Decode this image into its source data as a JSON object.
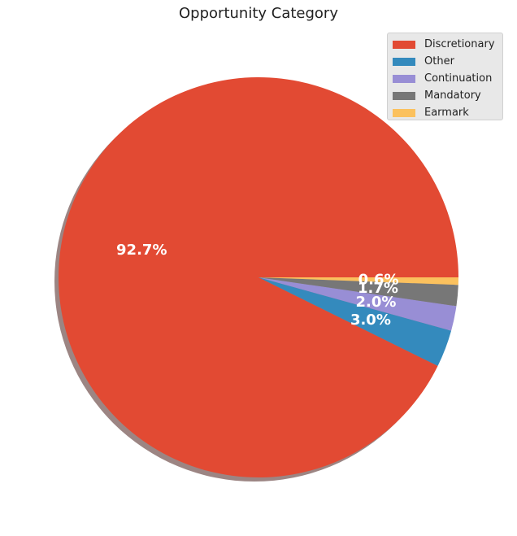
{
  "chart_data": {
    "type": "pie",
    "title": "Opportunity Category",
    "categories": [
      "Discretionary",
      "Other",
      "Continuation",
      "Mandatory",
      "Earmark"
    ],
    "values": [
      92.7,
      3.0,
      2.0,
      1.7,
      0.6
    ],
    "labels": [
      "92.7%",
      "3.0%",
      "2.0%",
      "1.7%",
      "0.6%"
    ],
    "colors": [
      "#E24A33",
      "#348ABD",
      "#988ED5",
      "#777777",
      "#FBC15E"
    ],
    "shadow": true,
    "legend_position": "top-right"
  }
}
